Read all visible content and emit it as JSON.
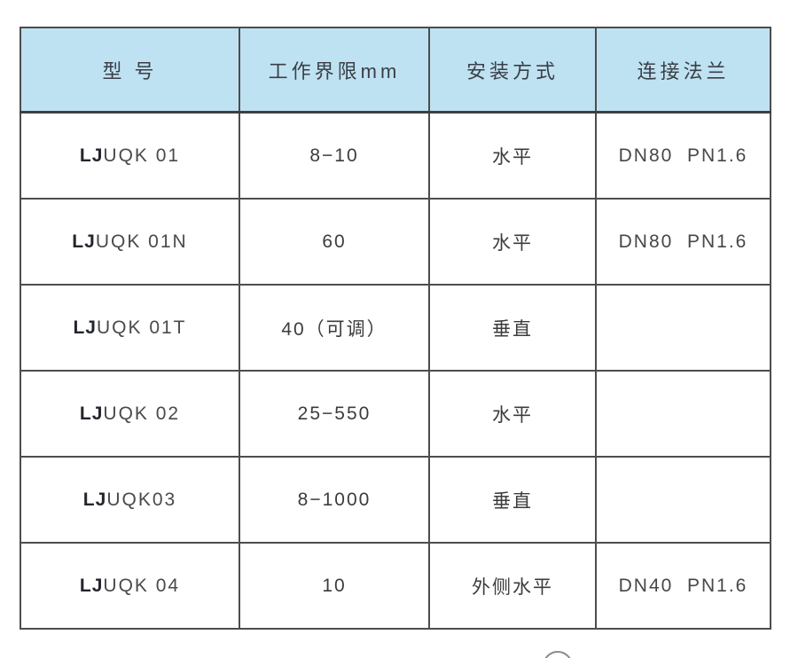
{
  "table": {
    "header_bg": "#bfe2f2",
    "border_color": "#4d4d4d",
    "text_color": "#3c3c3c",
    "columns": [
      {
        "label": "型 号"
      },
      {
        "label": "工作界限mm"
      },
      {
        "label": "安装方式"
      },
      {
        "label": "连接法兰"
      }
    ],
    "rows": [
      {
        "model_prefix": "LJ",
        "model_rest": "UQK 01",
        "work_range": "8−10",
        "mounting": "水平",
        "flange": "DN80  PN1.6"
      },
      {
        "model_prefix": "LJ",
        "model_rest": "UQK 01N",
        "work_range": "60",
        "mounting": "水平",
        "flange": "DN80  PN1.6"
      },
      {
        "model_prefix": "LJ",
        "model_rest": "UQK 01T",
        "work_range": "40（可调）",
        "mounting": "垂直",
        "flange": ""
      },
      {
        "model_prefix": "LJ",
        "model_rest": "UQK 02",
        "work_range": "25−550",
        "mounting": "水平",
        "flange": ""
      },
      {
        "model_prefix": "LJ",
        "model_rest": "UQK03",
        "work_range": "8−1000",
        "mounting": "垂直",
        "flange": ""
      },
      {
        "model_prefix": "LJ",
        "model_rest": "UQK 04",
        "work_range": "10",
        "mounting": "外侧水平",
        "flange": "DN40  PN1.6"
      }
    ]
  }
}
